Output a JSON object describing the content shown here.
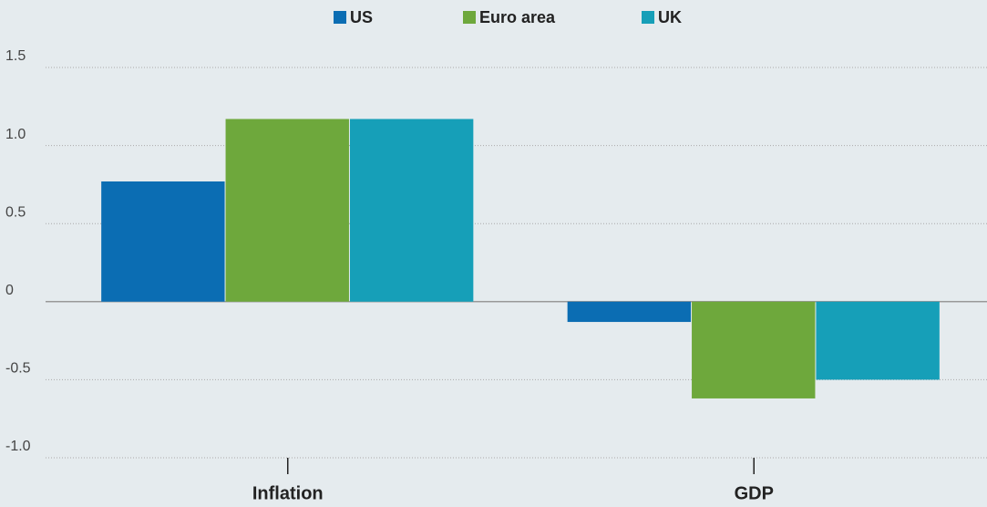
{
  "chart_data": {
    "type": "bar",
    "categories": [
      "Inflation",
      "GDP"
    ],
    "series": [
      {
        "name": "US",
        "color": "#0b6db3",
        "values": [
          0.77,
          -0.13
        ]
      },
      {
        "name": "Euro area",
        "color": "#6ea83c",
        "values": [
          1.17,
          -0.62
        ]
      },
      {
        "name": "UK",
        "color": "#169fb8",
        "values": [
          1.17,
          -0.5
        ]
      }
    ],
    "ylim": [
      -1.0,
      1.5
    ],
    "yticks": [
      1.5,
      {
        "value": 1,
        "label": "1.0"
      },
      0.5,
      0,
      -0.5,
      {
        "value": -1,
        "label": "-1.0"
      }
    ],
    "grid": true,
    "legend": "top"
  }
}
